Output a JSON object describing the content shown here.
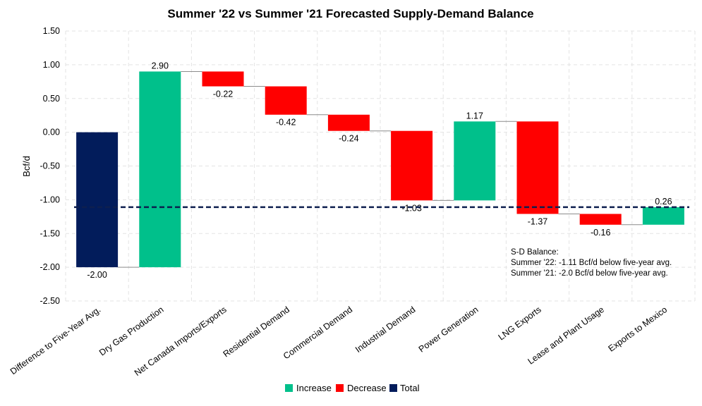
{
  "chart_data": {
    "type": "bar",
    "subtype": "waterfall",
    "title": "Summer '22 vs Summer '21 Forecasted Supply-Demand Balance",
    "ylabel": "Bcf/d",
    "xlabel": "",
    "ylim": [
      -2.5,
      1.5
    ],
    "yticks": [
      "1.50",
      "1.00",
      "0.50",
      "0.00",
      "-0.50",
      "-1.00",
      "-1.50",
      "-2.00",
      "-2.50"
    ],
    "ytick_values": [
      1.5,
      1.0,
      0.5,
      0.0,
      -0.5,
      -1.0,
      -1.5,
      -2.0,
      -2.5
    ],
    "grid": true,
    "legend_position": "bottom",
    "categories": [
      "Difference to Five-Year Avg.",
      "Dry Gas Production",
      "Net Canada Imports/Exports",
      "Residential Demand",
      "Commercial Demand",
      "Industrial Demand",
      "Power Generation",
      "LNG Exports",
      "Lease and Plant Usage",
      "Exports to Mexico"
    ],
    "values": [
      -2.0,
      2.9,
      -0.22,
      -0.42,
      -0.24,
      -1.03,
      1.17,
      -1.37,
      -0.16,
      0.26
    ],
    "value_labels": [
      "-2.00",
      "2.90",
      "-0.22",
      "-0.42",
      "-0.24",
      "-1.03",
      "1.17",
      "-1.37",
      "-0.16",
      "0.26"
    ],
    "kinds": [
      "total",
      "increase",
      "decrease",
      "decrease",
      "decrease",
      "decrease",
      "increase",
      "decrease",
      "decrease",
      "increase"
    ],
    "reference_line": {
      "value": -1.11,
      "style": "dashed",
      "color": "#0d1f4f"
    },
    "legend": [
      {
        "name": "Increase",
        "color": "#00c08b"
      },
      {
        "name": "Decrease",
        "color": "#ff0000"
      },
      {
        "name": "Total",
        "color": "#021c5b"
      }
    ],
    "annotation": [
      "S-D Balance:",
      "Summer '22: -1.11 Bcf/d below five-year avg.",
      "Summer '21: -2.0 Bcf/d below five-year avg."
    ]
  }
}
